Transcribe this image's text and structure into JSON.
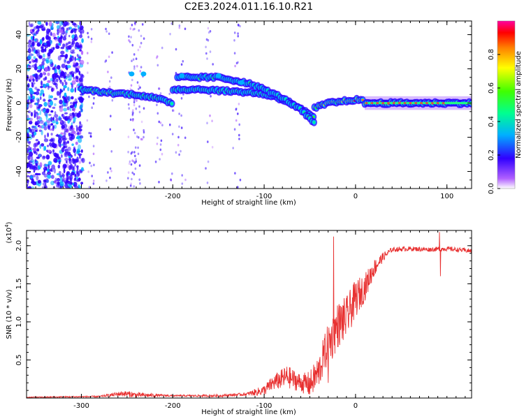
{
  "title": "C2E3.2024.011.16.10.R21",
  "chart_data": [
    {
      "type": "heatmap",
      "xlabel": "Height of straight line (km)",
      "ylabel": "Frequency (Hz)",
      "xlim": [
        -360,
        127
      ],
      "ylim": [
        -50,
        48
      ],
      "xticks": [
        -300,
        -200,
        -100,
        0,
        100
      ],
      "xtick_labels": [
        "-300",
        "-200",
        "-100",
        "0",
        "100"
      ],
      "yticks": [
        -40,
        -20,
        0,
        20,
        40
      ],
      "ytick_labels": [
        "-40",
        "-20",
        "0",
        "20",
        "40"
      ],
      "colorbar": {
        "label": "Normalized spectral amplitude",
        "range": [
          0,
          1
        ],
        "ticks": [
          0.0,
          0.2,
          0.4,
          0.6,
          0.8
        ],
        "tick_labels": [
          "0.0",
          "0.2",
          "0.4",
          "0.6",
          "0.8"
        ]
      },
      "ridges": [
        {
          "x": [
            -300,
            -270,
            -240,
            -220,
            -200
          ],
          "y": [
            8,
            6,
            5,
            3,
            0
          ],
          "amplitude": 0.5
        },
        {
          "x": [
            -200,
            -170,
            -140,
            -110,
            -90,
            -70,
            -55,
            -45
          ],
          "y": [
            8,
            8,
            7,
            6,
            4,
            0,
            -5,
            -9
          ],
          "amplitude": 0.45
        },
        {
          "x": [
            -195,
            -150,
            -120,
            -100,
            -80,
            -60,
            -45
          ],
          "y": [
            15,
            15,
            12,
            8,
            3,
            -4,
            -12
          ],
          "amplitude": 0.4
        },
        {
          "x": [
            -45,
            -30,
            -15,
            0,
            10
          ],
          "y": [
            -3,
            0,
            1,
            2,
            1
          ],
          "amplitude": 0.75
        },
        {
          "x": [
            10,
            40,
            80,
            127
          ],
          "y": [
            0,
            0,
            0,
            0
          ],
          "amplitude": 0.85
        }
      ]
    },
    {
      "type": "line",
      "xlabel": "Height of straight line (km)",
      "ylabel": "SNR (10 * v/v)",
      "y_scale_label": "(x10",
      "y_scale_exponent": "4",
      "y_scale_suffix": ")",
      "xlim": [
        -360,
        127
      ],
      "ylim": [
        0,
        2.2
      ],
      "xticks": [
        -300,
        -200,
        -100,
        0
      ],
      "xtick_labels": [
        "-300",
        "-200",
        "-100",
        "0"
      ],
      "yticks": [
        0.5,
        1.0,
        1.5,
        2.0
      ],
      "ytick_labels": [
        "0.5",
        "1.0",
        "1.5",
        "2.0"
      ],
      "color": "#e83030",
      "trend": {
        "x": [
          -360,
          -280,
          -255,
          -240,
          -200,
          -150,
          -120,
          -100,
          -90,
          -75,
          -60,
          -50,
          -40,
          -35,
          -30,
          -25,
          -20,
          -10,
          0,
          10,
          20,
          30,
          40,
          60,
          80,
          100,
          127
        ],
        "y": [
          0.01,
          0.02,
          0.06,
          0.04,
          0.03,
          0.03,
          0.05,
          0.1,
          0.2,
          0.28,
          0.2,
          0.18,
          0.35,
          0.55,
          0.7,
          0.8,
          0.95,
          1.05,
          1.3,
          1.45,
          1.7,
          1.85,
          1.95,
          1.96,
          1.95,
          1.96,
          1.93
        ]
      },
      "noise": {
        "x": [
          -360,
          -280,
          -250,
          -200,
          -120,
          -100,
          -75,
          -60,
          -45,
          -35,
          -25,
          -15,
          0,
          15,
          30,
          40,
          127
        ],
        "amp": [
          0.005,
          0.01,
          0.04,
          0.01,
          0.02,
          0.07,
          0.15,
          0.12,
          0.2,
          0.25,
          0.3,
          0.3,
          0.25,
          0.15,
          0.06,
          0.03,
          0.03
        ]
      },
      "spikes": [
        {
          "x": -24,
          "y": 2.12
        },
        {
          "x": 92,
          "y": 2.18
        },
        {
          "x": 93,
          "y": 1.6
        },
        {
          "x": -30,
          "y": 0.2
        }
      ]
    }
  ]
}
